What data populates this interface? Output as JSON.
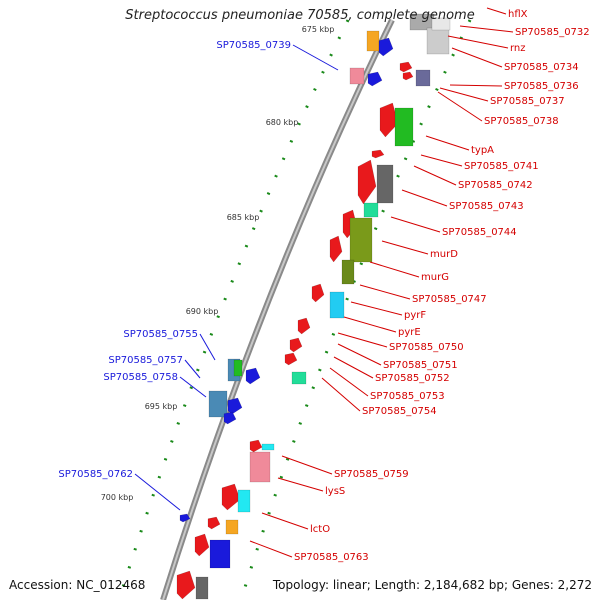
{
  "title": "Streptococcus pneumoniae 70585, complete genome",
  "footer": {
    "accession": "Accession: NC_012468",
    "topology": "Topology: linear; Length: 2,184,682 bp; Genes: 2,272"
  },
  "colors": {
    "forward_gene": "#e8191c",
    "reverse_gene": "#1a1adb",
    "forward_label": "#d40000",
    "reverse_label": "#1a1adb",
    "backbone": "#8a8a8a",
    "tick_dots": "#1a8a1a"
  },
  "kbp_ticks": [
    "675 kbp",
    "680 kbp",
    "685 kbp",
    "690 kbp",
    "695 kbp",
    "700 kbp"
  ],
  "forward_labels": [
    "hflX",
    "SP70585_0732",
    "rnz",
    "SP70585_0734",
    "SP70585_0736",
    "SP70585_0737",
    "SP70585_0738",
    "typA",
    "SP70585_0741",
    "SP70585_0742",
    "SP70585_0743",
    "SP70585_0744",
    "murD",
    "murG",
    "SP70585_0747",
    "pyrF",
    "pyrE",
    "SP70585_0750",
    "SP70585_0751",
    "SP70585_0752",
    "SP70585_0753",
    "SP70585_0754",
    "SP70585_0759",
    "lysS",
    "lctO",
    "SP70585_0763"
  ],
  "reverse_labels": [
    "SP70585_0739",
    "SP70585_0755",
    "SP70585_0757",
    "SP70585_0758",
    "SP70585_0762"
  ]
}
